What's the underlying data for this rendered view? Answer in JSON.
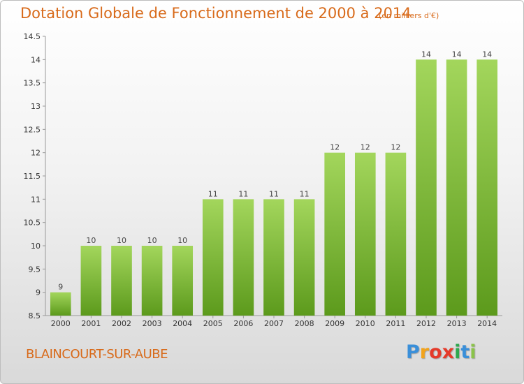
{
  "title": "Dotation Globale de Fonctionnement de 2000 à 2014",
  "subtitle": "(en milliers d'€)",
  "commune": "BLAINCOURT-SUR-AUBE",
  "logo": {
    "letters": [
      "P",
      "r",
      "o",
      "x",
      "i",
      "t",
      "i"
    ],
    "colors": [
      "#3a8fd9",
      "#f2a31b",
      "#e53a2a",
      "#e53a2a",
      "#2fa84f",
      "#3a8fd9",
      "#8bc34a"
    ]
  },
  "colors": {
    "bar_top": "#a3d65c",
    "bar_bottom": "#5c9a1c",
    "text_accent": "#d86a1a"
  },
  "chart_data": {
    "type": "bar",
    "categories": [
      "2000",
      "2001",
      "2002",
      "2003",
      "2004",
      "2005",
      "2006",
      "2007",
      "2008",
      "2009",
      "2010",
      "2011",
      "2012",
      "2013",
      "2014"
    ],
    "values": [
      9,
      10,
      10,
      10,
      10,
      11,
      11,
      11,
      11,
      12,
      12,
      12,
      14,
      14,
      14
    ],
    "data_labels": [
      "9",
      "10",
      "10",
      "10",
      "10",
      "11",
      "11",
      "11",
      "11",
      "12",
      "12",
      "12",
      "14",
      "14",
      "14"
    ],
    "ylim": [
      8.5,
      14.5
    ],
    "yticks": [
      8.5,
      9,
      9.5,
      10,
      10.5,
      11,
      11.5,
      12,
      12.5,
      13,
      13.5,
      14,
      14.5
    ],
    "ytick_labels": [
      "8.5",
      "9",
      "9.5",
      "10",
      "10.5",
      "11",
      "11.5",
      "12",
      "12.5",
      "13",
      "13.5",
      "14",
      "14.5"
    ],
    "grid": false,
    "xlabel": "",
    "ylabel": ""
  }
}
